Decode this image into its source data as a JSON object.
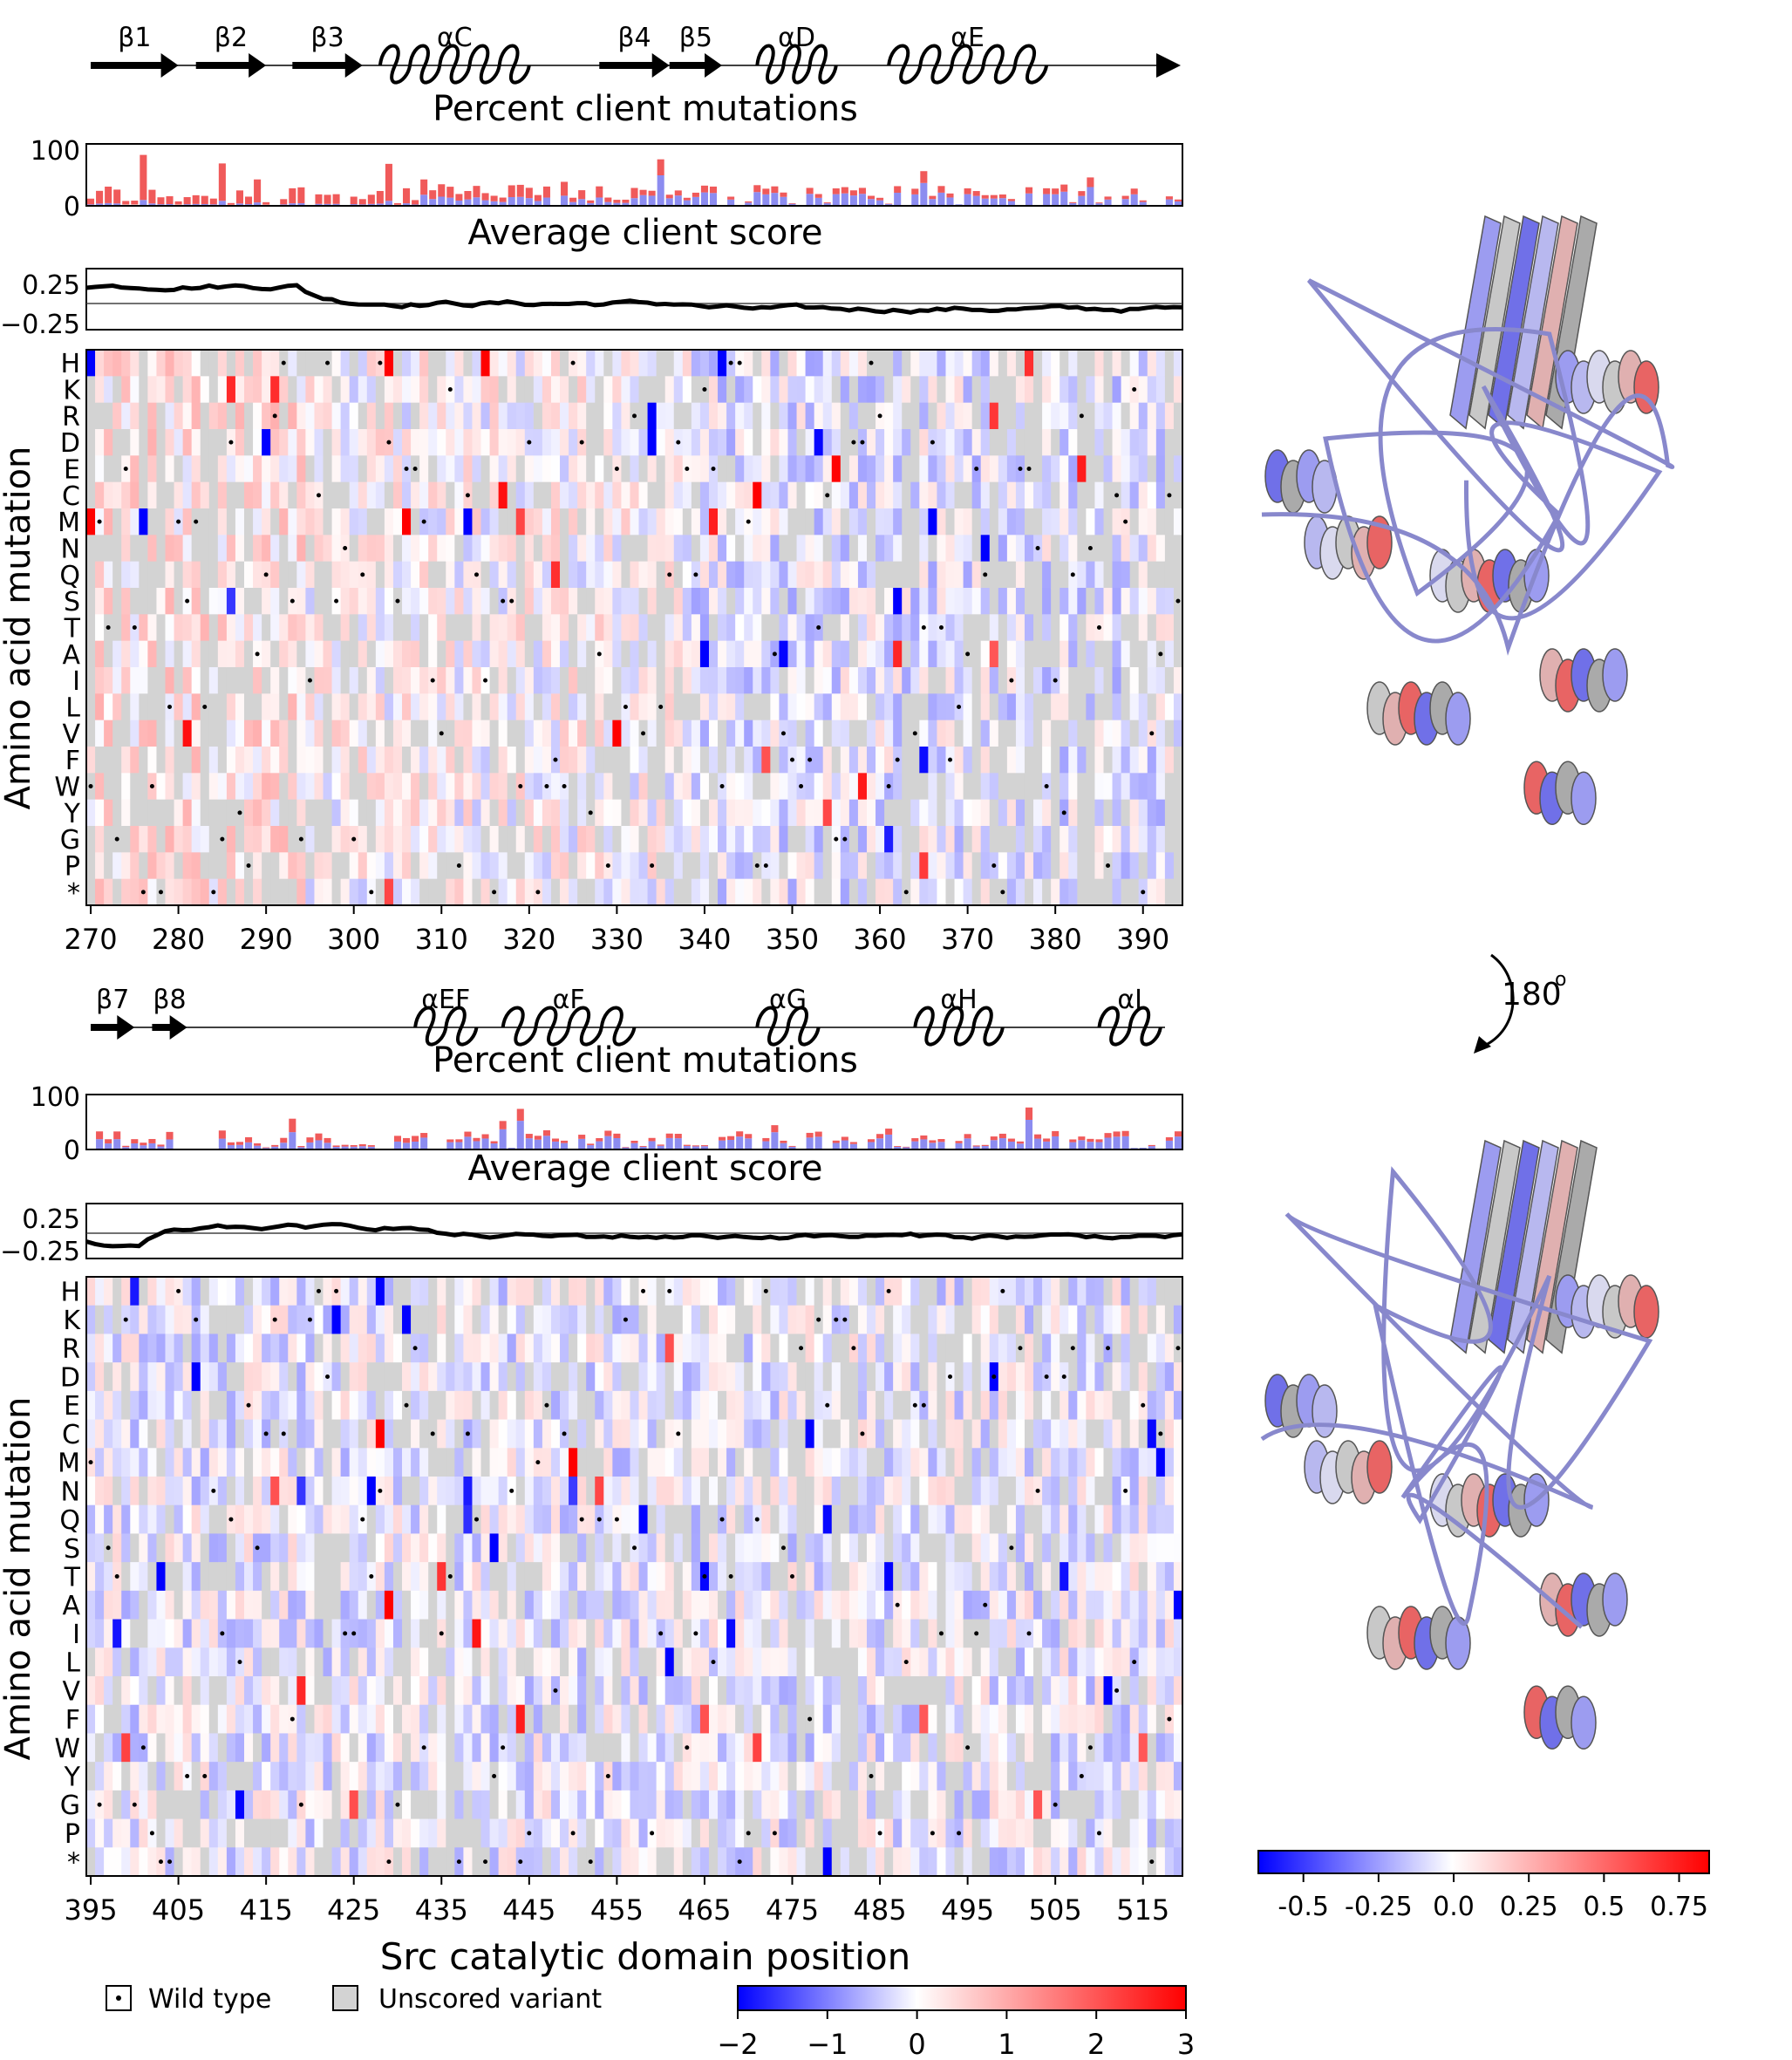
{
  "colors": {
    "negative": "#0000ff",
    "neutral": "#ffffff",
    "positive": "#ff0000",
    "unscored": "#d3d3d3",
    "bar_red": "#f05a5a",
    "bar_blue": "#8c8cf0",
    "ribbon_grey": "#9a9a9a"
  },
  "top_panel": {
    "ss_labels": [
      {
        "label": "β1",
        "type": "strand",
        "start": 270,
        "end": 280
      },
      {
        "label": "β2",
        "type": "strand",
        "start": 282,
        "end": 290
      },
      {
        "label": "β3",
        "type": "strand",
        "start": 293,
        "end": 301
      },
      {
        "label": "αC",
        "type": "helix",
        "start": 303,
        "end": 320
      },
      {
        "label": "β4",
        "type": "strand",
        "start": 328,
        "end": 336
      },
      {
        "label": "β5",
        "type": "strand",
        "start": 336,
        "end": 342
      },
      {
        "label": "αD",
        "type": "helix",
        "start": 346,
        "end": 355
      },
      {
        "label": "αE",
        "type": "helix",
        "start": 361,
        "end": 379
      },
      {
        "label": "",
        "type": "coil-arrow",
        "start": 379,
        "end": 394
      }
    ],
    "bar_title": "Percent client mutations",
    "bar_ylabel_ticks": [
      "100",
      "0"
    ],
    "line_title": "Average client score",
    "line_ticks": [
      "0.25",
      "−0.25"
    ],
    "heatmap_ylabel": "Amino acid mutation",
    "x_ticks": [
      "270",
      "280",
      "290",
      "300",
      "310",
      "320",
      "330",
      "340",
      "350",
      "360",
      "370",
      "380",
      "390"
    ],
    "x_range": [
      269.5,
      394.5
    ]
  },
  "bottom_panel": {
    "ss_labels": [
      {
        "label": "β7",
        "type": "strand",
        "start": 395,
        "end": 400
      },
      {
        "label": "β8",
        "type": "strand",
        "start": 402,
        "end": 406
      },
      {
        "label": "αEF",
        "type": "helix",
        "start": 432,
        "end": 439
      },
      {
        "label": "αF",
        "type": "helix",
        "start": 442,
        "end": 457
      },
      {
        "label": "αG",
        "type": "helix",
        "start": 471,
        "end": 478
      },
      {
        "label": "αH",
        "type": "helix",
        "start": 489,
        "end": 499
      },
      {
        "label": "αI",
        "type": "helix",
        "start": 510,
        "end": 517
      }
    ],
    "bar_title": "Percent client mutations",
    "bar_ylabel_ticks": [
      "100",
      "0"
    ],
    "line_title": "Average client score",
    "line_ticks": [
      "0.25",
      "−0.25"
    ],
    "heatmap_ylabel": "Amino acid mutation",
    "x_ticks": [
      "395",
      "405",
      "415",
      "425",
      "435",
      "445",
      "455",
      "465",
      "475",
      "485",
      "495",
      "505",
      "515"
    ],
    "x_range": [
      394.5,
      519.5
    ],
    "x_title": "Src catalytic domain position"
  },
  "rows": [
    "H",
    "K",
    "R",
    "D",
    "E",
    "C",
    "M",
    "N",
    "Q",
    "S",
    "T",
    "A",
    "I",
    "L",
    "V",
    "F",
    "W",
    "Y",
    "G",
    "P",
    "*"
  ],
  "legend": {
    "wild_type": "Wild type",
    "unscored": "Unscored variant"
  },
  "heatmap_colorbar": {
    "ticks": [
      "−2",
      "−1",
      "0",
      "1",
      "2",
      "3"
    ],
    "range": [
      -2,
      3
    ]
  },
  "structure_colorbar": {
    "ticks": [
      "-0.5",
      "-0.25",
      "0.0",
      "0.25",
      "0.5",
      "0.75"
    ],
    "range": [
      -0.65,
      0.85
    ]
  },
  "rotation_label": "180",
  "rotation_symbol": "o",
  "chart_data": [
    {
      "type": "bar",
      "title": "Percent client mutations",
      "xlabel": "",
      "ylabel": "",
      "ylim": [
        0,
        100
      ],
      "x_range": [
        270,
        394
      ],
      "note": "stacked bars (red = positive, blue = negative) per position"
    },
    {
      "type": "line",
      "title": "Average client score",
      "ylim": [
        -0.4,
        0.4
      ],
      "x_range": [
        270,
        394
      ]
    },
    {
      "type": "heatmap",
      "title": "",
      "xlabel": "",
      "ylabel": "Amino acid mutation",
      "x_range": [
        270,
        394
      ],
      "color_range": [
        -2,
        3
      ]
    },
    {
      "type": "bar",
      "title": "Percent client mutations",
      "ylim": [
        0,
        100
      ],
      "x_range": [
        395,
        519
      ]
    },
    {
      "type": "line",
      "title": "Average client score",
      "ylim": [
        -0.4,
        0.4
      ],
      "x_range": [
        395,
        519
      ]
    },
    {
      "type": "heatmap",
      "xlabel": "Src catalytic domain position",
      "ylabel": "Amino acid mutation",
      "x_range": [
        395,
        519
      ],
      "color_range": [
        -2,
        3
      ]
    }
  ]
}
